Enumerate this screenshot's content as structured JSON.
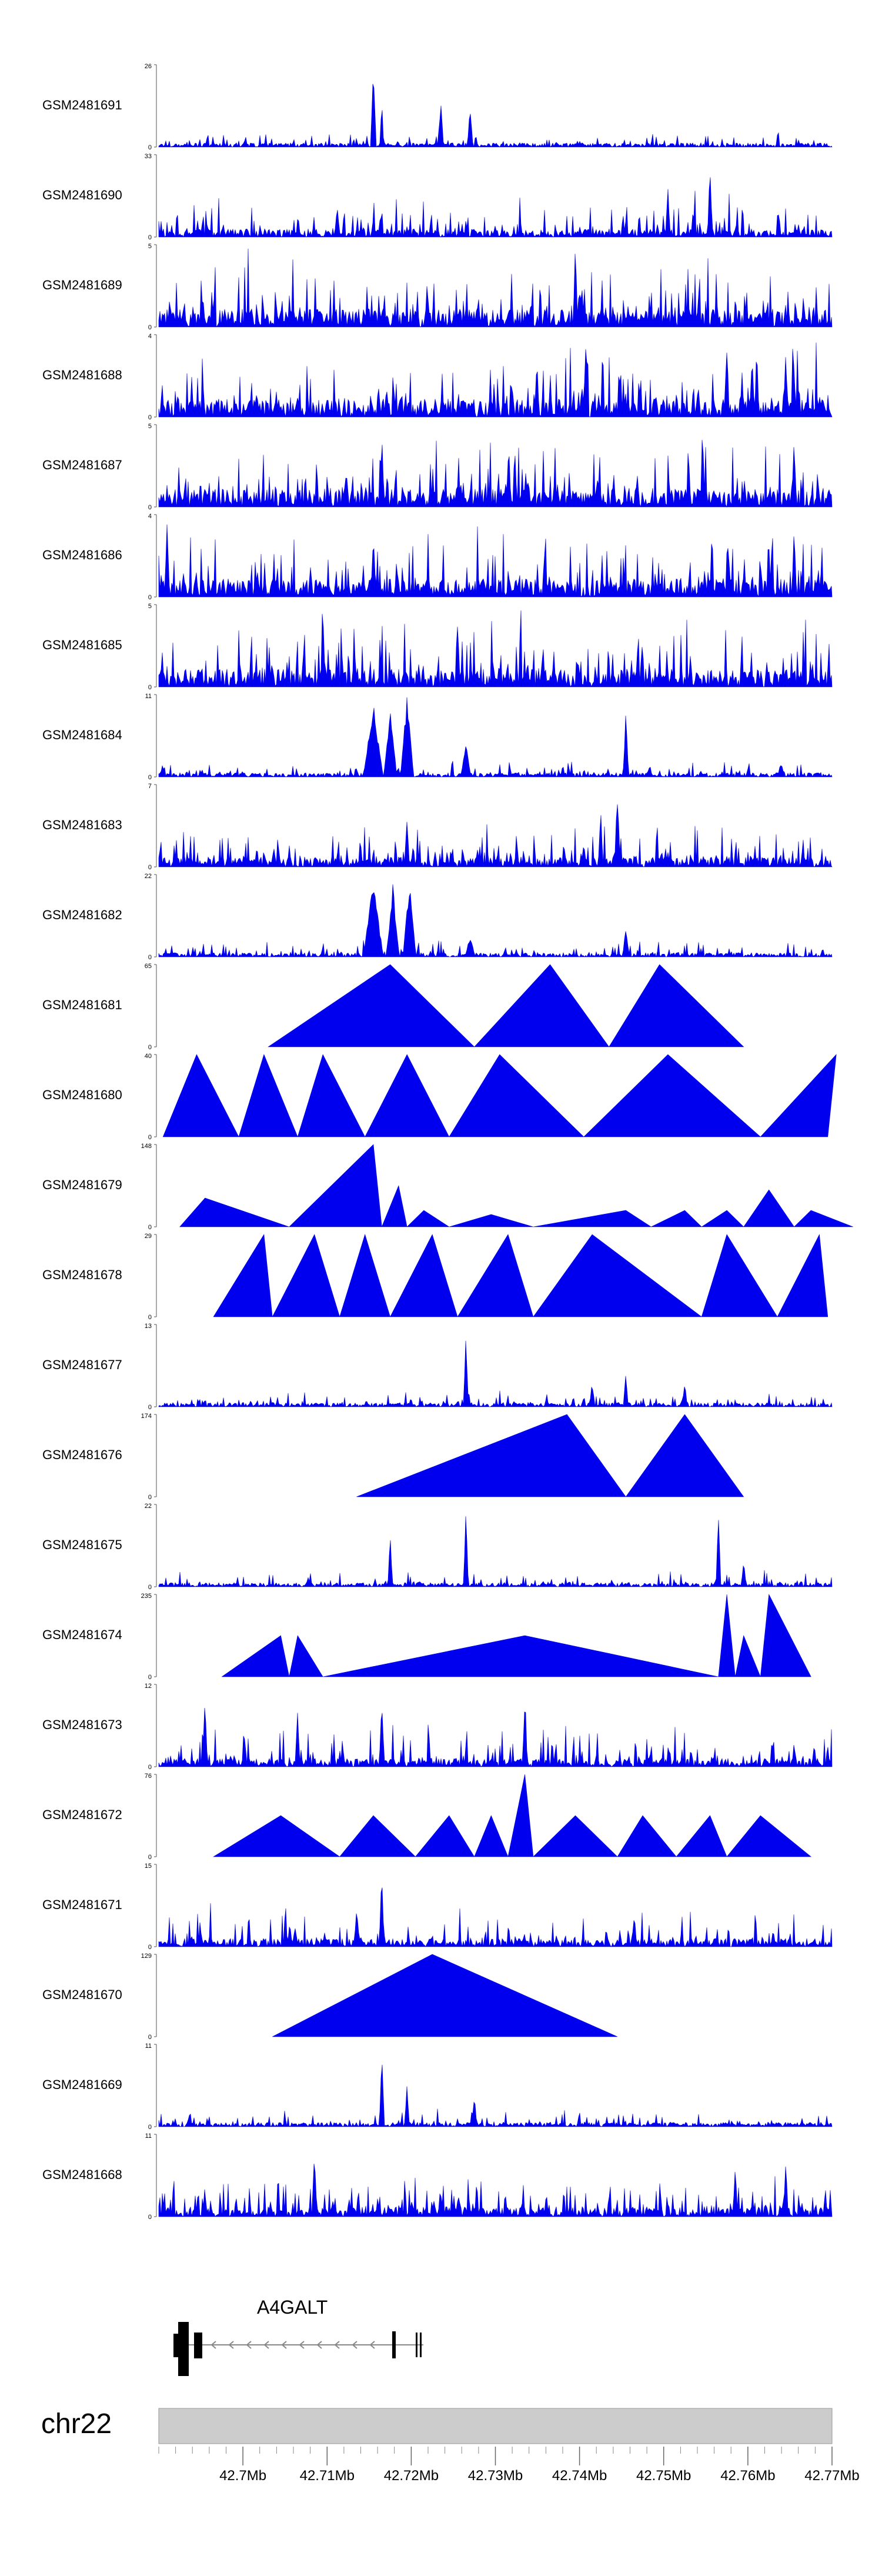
{
  "chart_data": {
    "type": "area",
    "chromosome": "chr22",
    "gene": {
      "name": "A4GALT"
    },
    "x_axis": {
      "ticks": [
        "42.7Mb",
        "42.71Mb",
        "42.72Mb",
        "42.73Mb",
        "42.74Mb",
        "42.75Mb",
        "42.76Mb",
        "42.77Mb"
      ],
      "range_mb": [
        42.69,
        42.77
      ]
    },
    "tracks": [
      {
        "name": "GSM2481691",
        "ymax": "26",
        "kind": "dense",
        "peaks": [
          [
            42.7155,
            1.0,
            0.35
          ],
          [
            42.7165,
            0.6,
            0.25
          ],
          [
            42.7235,
            0.62,
            0.35
          ],
          [
            42.727,
            0.55,
            0.35
          ]
        ]
      },
      {
        "name": "GSM2481690",
        "ymax": "33",
        "kind": "mixed",
        "peaks": [
          [
            42.7555,
            0.95,
            0.3
          ],
          [
            42.7505,
            0.7,
            0.3
          ],
          [
            42.7112,
            0.5,
            0.3
          ]
        ]
      },
      {
        "name": "GSM2481689",
        "ymax": "5",
        "kind": "dense_high",
        "peaks": [
          [
            42.7395,
            1.0,
            0.3
          ]
        ]
      },
      {
        "name": "GSM2481688",
        "ymax": "4",
        "kind": "dense_high",
        "peaks": [
          [
            42.7575,
            1.0,
            0.3
          ],
          [
            42.7605,
            0.9,
            0.3
          ],
          [
            42.7645,
            0.85,
            0.3
          ]
        ]
      },
      {
        "name": "GSM2481687",
        "ymax": "5",
        "kind": "dense_high",
        "peaks": [
          [
            42.7165,
            0.95,
            0.3
          ],
          [
            42.7655,
            0.95,
            0.3
          ]
        ]
      },
      {
        "name": "GSM2481686",
        "ymax": "4",
        "kind": "dense_high",
        "peaks": [
          [
            42.691,
            1.0,
            0.3
          ],
          [
            42.7155,
            0.95,
            0.3
          ],
          [
            42.7655,
            0.9,
            0.3
          ]
        ]
      },
      {
        "name": "GSM2481685",
        "ymax": "5",
        "kind": "dense_high",
        "peaks": [
          [
            42.7095,
            0.95,
            0.3
          ],
          [
            42.7255,
            0.95,
            0.3
          ]
        ]
      },
      {
        "name": "GSM2481684",
        "ymax": "11",
        "kind": "dense_low",
        "peaks": [
          [
            42.7155,
            0.9,
            1.2
          ],
          [
            42.7175,
            0.85,
            0.8
          ],
          [
            42.7195,
            1.0,
            0.8
          ],
          [
            42.7265,
            0.45,
            0.6
          ],
          [
            42.7455,
            0.85,
            0.35
          ]
        ]
      },
      {
        "name": "GSM2481683",
        "ymax": "7",
        "kind": "dense_mid",
        "peaks": [
          [
            42.7445,
            1.0,
            0.35
          ],
          [
            42.7425,
            0.75,
            0.3
          ],
          [
            42.7195,
            0.75,
            0.3
          ]
        ]
      },
      {
        "name": "GSM2481682",
        "ymax": "22",
        "kind": "dense_low",
        "peaks": [
          [
            42.7155,
            0.95,
            1.2
          ],
          [
            42.7178,
            0.9,
            0.8
          ],
          [
            42.7198,
            0.92,
            0.8
          ],
          [
            42.727,
            0.28,
            0.6
          ],
          [
            42.7455,
            0.4,
            0.4
          ]
        ]
      },
      {
        "name": "GSM2481681",
        "ymax": "65",
        "kind": "triangles",
        "tri": [
          [
            42.703,
            42.7175,
            42.7275,
            1.0
          ],
          [
            42.7275,
            42.7365,
            42.7435,
            1.0
          ],
          [
            42.7435,
            42.7495,
            42.7595,
            1.0
          ]
        ]
      },
      {
        "name": "GSM2481680",
        "ymax": "40",
        "kind": "triangles",
        "tri": [
          [
            42.6905,
            42.6945,
            42.6995,
            1.0
          ],
          [
            42.6995,
            42.7025,
            42.7065,
            1.0
          ],
          [
            42.7065,
            42.7095,
            42.7145,
            1.0
          ],
          [
            42.7145,
            42.7195,
            42.7245,
            1.0
          ],
          [
            42.7245,
            42.7305,
            42.7405,
            1.0
          ],
          [
            42.7405,
            42.7505,
            42.7615,
            1.0
          ],
          [
            42.7615,
            42.7705,
            42.7695,
            1.0
          ]
        ]
      },
      {
        "name": "GSM2481679",
        "ymax": "148",
        "kind": "triangles",
        "tri": [
          [
            42.6925,
            42.6955,
            42.7055,
            0.35
          ],
          [
            42.7055,
            42.7155,
            42.7165,
            1.0
          ],
          [
            42.7165,
            42.7185,
            42.7195,
            0.5
          ],
          [
            42.7195,
            42.7215,
            42.7245,
            0.2
          ],
          [
            42.7245,
            42.7295,
            42.7345,
            0.15
          ],
          [
            42.7345,
            42.7455,
            42.7485,
            0.2
          ],
          [
            42.7485,
            42.7525,
            42.7545,
            0.2
          ],
          [
            42.7545,
            42.7575,
            42.7595,
            0.2
          ],
          [
            42.7595,
            42.7625,
            42.7655,
            0.45
          ],
          [
            42.7655,
            42.7675,
            42.7725,
            0.2
          ]
        ]
      },
      {
        "name": "GSM2481678",
        "ymax": "29",
        "kind": "triangles",
        "tri": [
          [
            42.6965,
            42.7025,
            42.7035,
            1.0
          ],
          [
            42.7035,
            42.7085,
            42.7115,
            1.0
          ],
          [
            42.7115,
            42.7145,
            42.7175,
            1.0
          ],
          [
            42.7175,
            42.7225,
            42.7255,
            1.0
          ],
          [
            42.7255,
            42.7315,
            42.7345,
            1.0
          ],
          [
            42.7345,
            42.7415,
            42.7545,
            1.0
          ],
          [
            42.7545,
            42.7575,
            42.7635,
            1.0
          ],
          [
            42.7635,
            42.7685,
            42.7695,
            1.0
          ]
        ]
      },
      {
        "name": "GSM2481677",
        "ymax": "13",
        "kind": "dense_low",
        "peaks": [
          [
            42.7265,
            1.0,
            0.3
          ],
          [
            42.7455,
            0.45,
            0.3
          ],
          [
            42.7415,
            0.35,
            0.3
          ],
          [
            42.7525,
            0.35,
            0.3
          ]
        ]
      },
      {
        "name": "GSM2481676",
        "ymax": "174",
        "kind": "triangles",
        "tri": [
          [
            42.7135,
            42.7385,
            42.7455,
            1.0
          ],
          [
            42.7455,
            42.7525,
            42.7595,
            1.0
          ]
        ]
      },
      {
        "name": "GSM2481675",
        "ymax": "22",
        "kind": "dense_low",
        "peaks": [
          [
            42.7265,
            1.0,
            0.3
          ],
          [
            42.7565,
            1.0,
            0.3
          ],
          [
            42.7175,
            0.65,
            0.3
          ],
          [
            42.7595,
            0.4,
            0.3
          ]
        ]
      },
      {
        "name": "GSM2481674",
        "ymax": "235",
        "kind": "triangles",
        "tri": [
          [
            42.6975,
            42.7045,
            42.7055,
            0.5
          ],
          [
            42.7055,
            42.7065,
            42.7095,
            0.5
          ],
          [
            42.7095,
            42.7335,
            42.7565,
            0.5
          ],
          [
            42.7565,
            42.7575,
            42.7585,
            1.0
          ],
          [
            42.7585,
            42.7595,
            42.7615,
            0.5
          ],
          [
            42.7615,
            42.7625,
            42.7675,
            1.0
          ]
        ]
      },
      {
        "name": "GSM2481673",
        "ymax": "12",
        "kind": "mixed",
        "peaks": [
          [
            42.7335,
            1.0,
            0.3
          ],
          [
            42.6955,
            1.0,
            0.3
          ],
          [
            42.7165,
            0.95,
            0.3
          ],
          [
            42.7065,
            0.75,
            0.3
          ]
        ]
      },
      {
        "name": "GSM2481672",
        "ymax": "76",
        "kind": "triangles",
        "tri": [
          [
            42.6965,
            42.7045,
            42.7115,
            0.5
          ],
          [
            42.7115,
            42.7155,
            42.7205,
            0.5
          ],
          [
            42.7205,
            42.7245,
            42.7275,
            0.5
          ],
          [
            42.7275,
            42.7295,
            42.7315,
            0.5
          ],
          [
            42.7315,
            42.7335,
            42.7345,
            1.0
          ],
          [
            42.7345,
            42.7395,
            42.7445,
            0.5
          ],
          [
            42.7445,
            42.7475,
            42.7515,
            0.5
          ],
          [
            42.7515,
            42.7555,
            42.7575,
            0.5
          ],
          [
            42.7575,
            42.7615,
            42.7675,
            0.5
          ]
        ]
      },
      {
        "name": "GSM2481671",
        "ymax": "15",
        "kind": "mixed",
        "peaks": [
          [
            42.7165,
            1.0,
            0.3
          ],
          [
            42.7135,
            0.55,
            0.3
          ],
          [
            42.7465,
            0.5,
            0.3
          ]
        ]
      },
      {
        "name": "GSM2481670",
        "ymax": "129",
        "kind": "triangles",
        "tri": [
          [
            42.7035,
            42.7225,
            42.7445,
            1.0
          ]
        ]
      },
      {
        "name": "GSM2481669",
        "ymax": "11",
        "kind": "dense_low",
        "peaks": [
          [
            42.7165,
            1.0,
            0.3
          ],
          [
            42.7195,
            0.55,
            0.3
          ],
          [
            42.7275,
            0.45,
            0.3
          ]
        ]
      },
      {
        "name": "GSM2481668",
        "ymax": "11",
        "kind": "dense_mid",
        "peaks": [
          [
            42.7085,
            1.0,
            0.3
          ],
          [
            42.7585,
            0.7,
            0.3
          ],
          [
            42.7645,
            0.75,
            0.3
          ]
        ]
      }
    ],
    "zero_label": "0"
  },
  "colors": {
    "signal": "#0000ee",
    "axis_bar": "#cccccc",
    "text": "#000000"
  }
}
